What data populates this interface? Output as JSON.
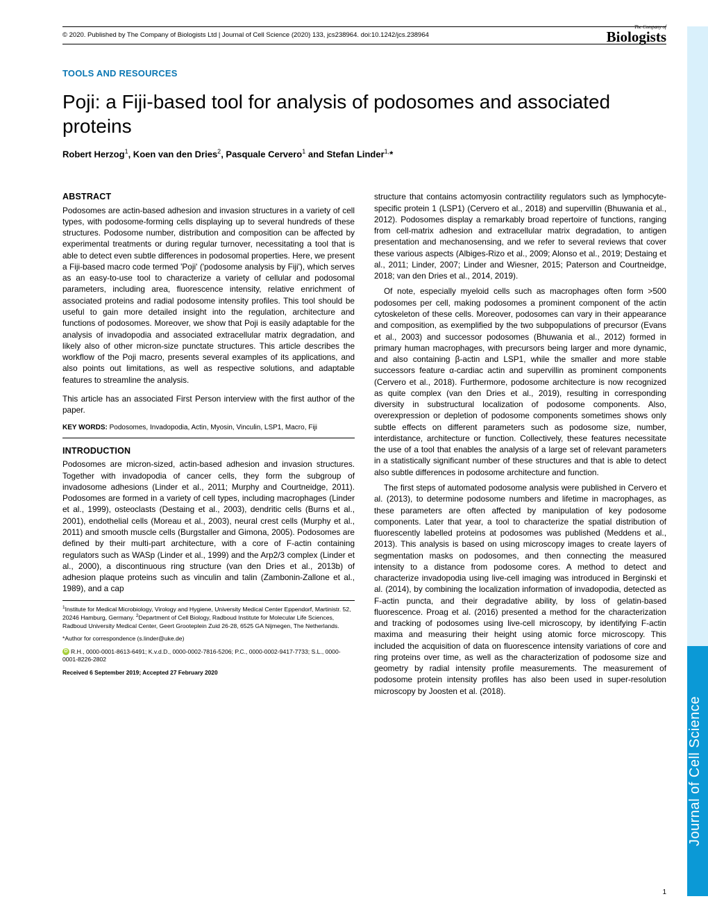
{
  "meta": {
    "copyright_line": "© 2020. Published by The Company of Biologists Ltd | Journal of Cell Science (2020) 133, jcs238964. doi:10.1242/jcs.238964",
    "logo_tiny": "The Company of",
    "logo_big_pre": "Biologists",
    "section_label": "TOOLS AND RESOURCES",
    "page_number": "1"
  },
  "title": "Poji: a Fiji-based tool for analysis of podosomes and associated proteins",
  "authors_html": "Robert Herzog<sup>1</sup>, Koen van den Dries<sup>2</sup>, Pasquale Cervero<sup>1</sup> and Stefan Linder<sup>1,</sup>*",
  "abstract_heading": "ABSTRACT",
  "abstract": "Podosomes are actin-based adhesion and invasion structures in a variety of cell types, with podosome-forming cells displaying up to several hundreds of these structures. Podosome number, distribution and composition can be affected by experimental treatments or during regular turnover, necessitating a tool that is able to detect even subtle differences in podosomal properties. Here, we present a Fiji-based macro code termed 'Poji' ('podosome analysis by Fiji'), which serves as an easy-to-use tool to characterize a variety of cellular and podosomal parameters, including area, fluorescence intensity, relative enrichment of associated proteins and radial podosome intensity profiles. This tool should be useful to gain more detailed insight into the regulation, architecture and functions of podosomes. Moreover, we show that Poji is easily adaptable for the analysis of invadopodia and associated extracellular matrix degradation, and likely also of other micron-size punctate structures. This article describes the workflow of the Poji macro, presents several examples of its applications, and also points out limitations, as well as respective solutions, and adaptable features to streamline the analysis.",
  "first_person": "This article has an associated First Person interview with the first author of the paper.",
  "keywords_label": "KEY WORDS:",
  "keywords": "Podosomes, Invadopodia, Actin, Myosin, Vinculin, LSP1, Macro, Fiji",
  "intro_heading": "INTRODUCTION",
  "intro_p1": "Podosomes are micron-sized, actin-based adhesion and invasion structures. Together with invadopodia of cancer cells, they form the subgroup of invadosome adhesions (Linder et al., 2011; Murphy and Courtneidge, 2011). Podosomes are formed in a variety of cell types, including macrophages (Linder et al., 1999), osteoclasts (Destaing et al., 2003), dendritic cells (Burns et al., 2001), endothelial cells (Moreau et al., 2003), neural crest cells (Murphy et al., 2011) and smooth muscle cells (Burgstaller and Gimona, 2005). Podosomes are defined by their multi-part architecture, with a core of F-actin containing regulators such as WASp (Linder et al., 1999) and the Arp2/3 complex (Linder et al., 2000), a discontinuous ring structure (van den Dries et al., 2013b) of adhesion plaque proteins such as vinculin and talin (Zambonin-Zallone et al., 1989), and a cap",
  "affiliations": "<sup>1</sup>Institute for Medical Microbiology, Virology and Hygiene, University Medical Center Eppendorf, Martinistr. 52, 20246 Hamburg, Germany. <sup>2</sup>Department of Cell Biology, Radboud Institute for Molecular Life Sciences, Radboud University Medical Center, Geert Grooteplein Zuid 26-28, 6525 GA Nijmegen, The Netherlands.",
  "correspondence": "*Author for correspondence (s.linder@uke.de)",
  "orcids": "R.H., 0000-0001-8613-6491; K.v.d.D., 0000-0002-7816-5206; P.C., 0000-0002-9417-7733; S.L., 0000-0001-8226-2802",
  "received": "Received 6 September 2019; Accepted 27 February 2020",
  "col2_p1": "structure that contains actomyosin contractility regulators such as lymphocyte-specific protein 1 (LSP1) (Cervero et al., 2018) and supervillin (Bhuwania et al., 2012). Podosomes display a remarkably broad repertoire of functions, ranging from cell-matrix adhesion and extracellular matrix degradation, to antigen presentation and mechanosensing, and we refer to several reviews that cover these various aspects (Albiges-Rizo et al., 2009; Alonso et al., 2019; Destaing et al., 2011; Linder, 2007; Linder and Wiesner, 2015; Paterson and Courtneidge, 2018; van den Dries et al., 2014, 2019).",
  "col2_p2": "Of note, especially myeloid cells such as macrophages often form >500 podosomes per cell, making podosomes a prominent component of the actin cytoskeleton of these cells. Moreover, podosomes can vary in their appearance and composition, as exemplified by the two subpopulations of precursor (Evans et al., 2003) and successor podosomes (Bhuwania et al., 2012) formed in primary human macrophages, with precursors being larger and more dynamic, and also containing β-actin and LSP1, while the smaller and more stable successors feature α-cardiac actin and supervillin as prominent components (Cervero et al., 2018). Furthermore, podosome architecture is now recognized as quite complex (van den Dries et al., 2019), resulting in corresponding diversity in substructural localization of podosome components. Also, overexpression or depletion of podosome components sometimes shows only subtle effects on different parameters such as podosome size, number, interdistance, architecture or function. Collectively, these features necessitate the use of a tool that enables the analysis of a large set of relevant parameters in a statistically significant number of these structures and that is able to detect also subtle differences in podosome architecture and function.",
  "col2_p3": "The first steps of automated podosome analysis were published in Cervero et al. (2013), to determine podosome numbers and lifetime in macrophages, as these parameters are often affected by manipulation of key podosome components. Later that year, a tool to characterize the spatial distribution of fluorescently labelled proteins at podosomes was published (Meddens et al., 2013). This analysis is based on using microscopy images to create layers of segmentation masks on podosomes, and then connecting the measured intensity to a distance from podosome cores. A method to detect and characterize invadopodia using live-cell imaging was introduced in Berginski et al. (2014), by combining the localization information of invadopodia, detected as F-actin puncta, and their degradative ability, by loss of gelatin-based fluorescence. Proag et al. (2016) presented a method for the characterization and tracking of podosomes using live-cell microscopy, by identifying F-actin maxima and measuring their height using atomic force microscopy. This included the acquisition of data on fluorescence intensity variations of core and ring proteins over time, as well as the characterization of podosome size and geometry by radial intensity profile measurements. The measurement of podosome protein intensity profiles has also been used in super-resolution microscopy by Joosten et al. (2018).",
  "side_tab": "Journal of Cell Science",
  "colors": {
    "brand_blue": "#0b77b3",
    "tab_blue": "#0b99d6",
    "tab_light": "#d9f0fb",
    "orcid_green": "#a6ce39"
  }
}
